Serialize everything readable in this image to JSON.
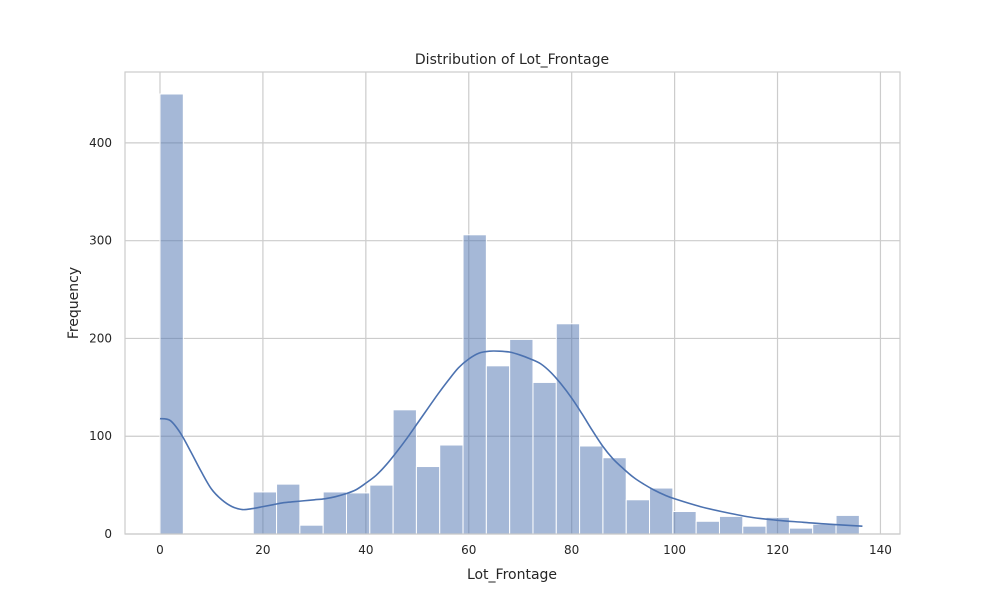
{
  "chart_data": {
    "type": "histogram",
    "title": "Distribution of Lot_Frontage",
    "xlabel": "Lot_Frontage",
    "ylabel": "Frequency",
    "xlim": [
      -6.8,
      143.8
    ],
    "ylim": [
      0,
      472.5
    ],
    "x_ticks": [
      "0",
      "20",
      "40",
      "60",
      "80",
      "100",
      "120",
      "140"
    ],
    "y_ticks": [
      "0",
      "100",
      "200",
      "300",
      "400"
    ],
    "grid": true,
    "bin_width": 4.53,
    "bins": [
      {
        "x0": 0.0,
        "x1": 4.53,
        "count": 450
      },
      {
        "x0": 4.53,
        "x1": 9.06,
        "count": 0
      },
      {
        "x0": 9.06,
        "x1": 13.59,
        "count": 0
      },
      {
        "x0": 13.59,
        "x1": 18.12,
        "count": 0
      },
      {
        "x0": 18.12,
        "x1": 22.65,
        "count": 43
      },
      {
        "x0": 22.65,
        "x1": 27.18,
        "count": 51
      },
      {
        "x0": 27.18,
        "x1": 31.71,
        "count": 9
      },
      {
        "x0": 31.71,
        "x1": 36.24,
        "count": 43
      },
      {
        "x0": 36.24,
        "x1": 40.77,
        "count": 42
      },
      {
        "x0": 40.77,
        "x1": 45.3,
        "count": 50
      },
      {
        "x0": 45.3,
        "x1": 49.83,
        "count": 127
      },
      {
        "x0": 49.83,
        "x1": 54.36,
        "count": 69
      },
      {
        "x0": 54.36,
        "x1": 58.89,
        "count": 91
      },
      {
        "x0": 58.89,
        "x1": 63.42,
        "count": 306
      },
      {
        "x0": 63.42,
        "x1": 67.95,
        "count": 172
      },
      {
        "x0": 67.95,
        "x1": 72.48,
        "count": 199
      },
      {
        "x0": 72.48,
        "x1": 77.01,
        "count": 155
      },
      {
        "x0": 77.01,
        "x1": 81.54,
        "count": 215
      },
      {
        "x0": 81.54,
        "x1": 86.07,
        "count": 90
      },
      {
        "x0": 86.07,
        "x1": 90.6,
        "count": 78
      },
      {
        "x0": 90.6,
        "x1": 95.13,
        "count": 35
      },
      {
        "x0": 95.13,
        "x1": 99.66,
        "count": 47
      },
      {
        "x0": 99.66,
        "x1": 104.19,
        "count": 23
      },
      {
        "x0": 104.19,
        "x1": 108.72,
        "count": 13
      },
      {
        "x0": 108.72,
        "x1": 113.25,
        "count": 18
      },
      {
        "x0": 113.25,
        "x1": 117.78,
        "count": 8
      },
      {
        "x0": 117.78,
        "x1": 122.31,
        "count": 17
      },
      {
        "x0": 122.31,
        "x1": 126.84,
        "count": 6
      },
      {
        "x0": 126.84,
        "x1": 131.37,
        "count": 10
      },
      {
        "x0": 131.37,
        "x1": 135.9,
        "count": 19
      }
    ],
    "kde": {
      "x": [
        0,
        2,
        4,
        6,
        8,
        10,
        12,
        14,
        16,
        18,
        20,
        22,
        24,
        26,
        28,
        30,
        32,
        34,
        36,
        38,
        40,
        42,
        44,
        46,
        48,
        50,
        52,
        54,
        56,
        58,
        60,
        62,
        64,
        66,
        68,
        70,
        72,
        74,
        76,
        78,
        80,
        82,
        84,
        86,
        88,
        90,
        92,
        94,
        96,
        98,
        100,
        105,
        110,
        115,
        120,
        125,
        130,
        136.5
      ],
      "y": [
        118,
        116,
        103,
        84,
        64,
        46,
        35,
        28,
        25,
        26,
        28,
        30,
        32,
        33,
        34,
        35,
        36,
        38,
        41,
        45,
        52,
        60,
        71,
        84,
        98,
        113,
        128,
        143,
        157,
        170,
        179,
        185,
        187,
        187,
        186,
        183,
        179,
        174,
        165,
        153,
        139,
        123,
        106,
        90,
        77,
        67,
        58,
        51,
        45,
        40,
        36,
        28,
        22,
        17,
        14,
        12,
        10,
        8
      ]
    },
    "colors": {
      "bar_fill": "#4c72b0",
      "bar_opacity": 0.5,
      "kde_line": "#4c72b0",
      "grid": "#cccccc",
      "frame": "#cccccc"
    }
  }
}
